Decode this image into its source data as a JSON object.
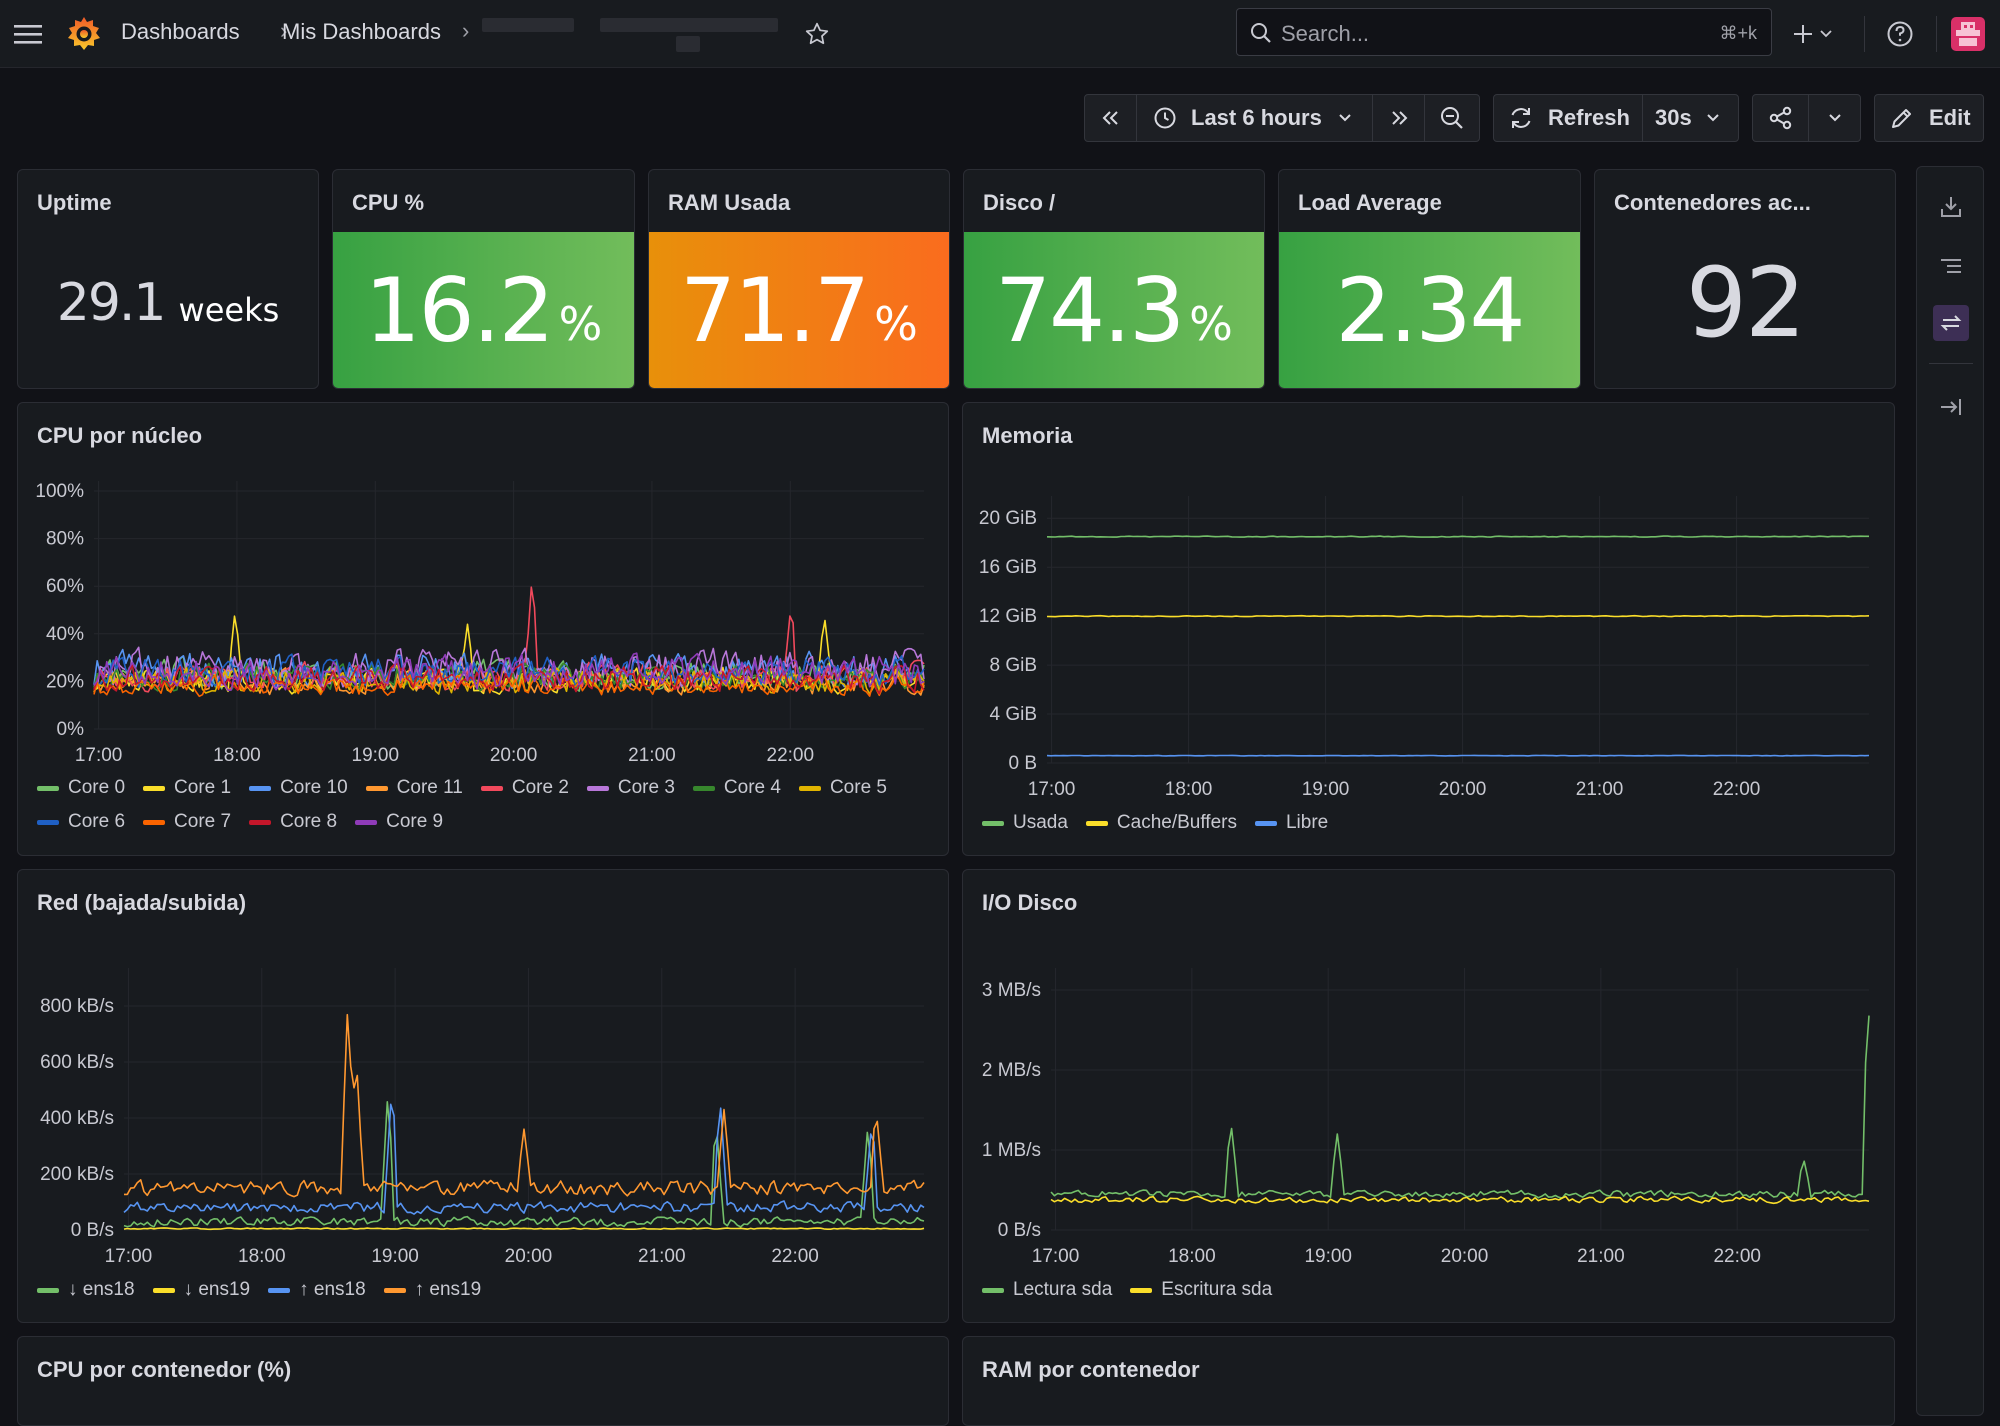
{
  "header": {
    "breadcrumb": [
      "Dashboards",
      "Mis Dashboards"
    ],
    "search_placeholder": "Search...",
    "search_shortcut": "⌘+k"
  },
  "toolbar": {
    "time_range": "Last 6 hours",
    "refresh_label": "Refresh",
    "refresh_interval": "30s",
    "edit_label": "Edit"
  },
  "stats": [
    {
      "title": "Uptime",
      "value": "29.1",
      "unit": "weeks",
      "style": "plain",
      "color": "#d8d9e0"
    },
    {
      "title": "CPU %",
      "value": "16.2",
      "unit": "%",
      "style": "green",
      "color": "#56a64b"
    },
    {
      "title": "RAM Usada",
      "value": "71.7",
      "unit": "%",
      "style": "orange",
      "color": "#ff780a"
    },
    {
      "title": "Disco /",
      "value": "74.3",
      "unit": "%",
      "style": "green",
      "color": "#56a64b"
    },
    {
      "title": "Load Average",
      "value": "2.34",
      "unit": "",
      "style": "green",
      "color": "#56a64b"
    },
    {
      "title": "Contenedores ac...",
      "value": "92",
      "unit": "",
      "style": "plain",
      "color": "#d8d9e0"
    }
  ],
  "panels": {
    "cpu": {
      "title": "CPU por núcleo"
    },
    "mem": {
      "title": "Memoria"
    },
    "net": {
      "title": "Red (bajada/subida)"
    },
    "disk": {
      "title": "I/O Disco"
    },
    "cpu_cont": {
      "title": "CPU por contenedor (%)"
    },
    "ram_cont": {
      "title": "RAM por contenedor"
    }
  },
  "chart_data": [
    {
      "id": "cpu",
      "type": "line",
      "title": "CPU por núcleo",
      "x": [
        "17:00",
        "18:00",
        "19:00",
        "20:00",
        "21:00",
        "22:00"
      ],
      "xlim": [
        "16:58",
        "22:58"
      ],
      "yticks": [
        "0%",
        "20%",
        "40%",
        "60%",
        "80%",
        "100%"
      ],
      "ylim": [
        0,
        100
      ],
      "series": [
        {
          "name": "Core 0",
          "color": "#73bf69",
          "baseline": 23,
          "noise": 9
        },
        {
          "name": "Core 1",
          "color": "#fade2a",
          "baseline": 21,
          "noise": 8,
          "spikes": [
            [
              0.17,
              50
            ],
            [
              0.45,
              44
            ],
            [
              0.88,
              48
            ]
          ]
        },
        {
          "name": "Core 10",
          "color": "#5794f2",
          "baseline": 25,
          "noise": 11
        },
        {
          "name": "Core 11",
          "color": "#ff9830",
          "baseline": 20,
          "noise": 8
        },
        {
          "name": "Core 2",
          "color": "#f2495c",
          "baseline": 22,
          "noise": 9,
          "spikes": [
            [
              0.528,
              65
            ],
            [
              0.84,
              53
            ]
          ]
        },
        {
          "name": "Core 3",
          "color": "#b877d9",
          "baseline": 26,
          "noise": 12
        },
        {
          "name": "Core 4",
          "color": "#37872d",
          "baseline": 22,
          "noise": 8
        },
        {
          "name": "Core 5",
          "color": "#e0b400",
          "baseline": 20,
          "noise": 8
        },
        {
          "name": "Core 6",
          "color": "#1f60c4",
          "baseline": 24,
          "noise": 9
        },
        {
          "name": "Core 7",
          "color": "#fa6400",
          "baseline": 18,
          "noise": 6
        },
        {
          "name": "Core 8",
          "color": "#c4162a",
          "baseline": 21,
          "noise": 8
        },
        {
          "name": "Core 9",
          "color": "#8f3bb8",
          "baseline": 24,
          "noise": 10
        }
      ]
    },
    {
      "id": "mem",
      "type": "line",
      "title": "Memoria",
      "x": [
        "17:00",
        "18:00",
        "19:00",
        "20:00",
        "21:00",
        "22:00"
      ],
      "xlim": [
        "16:58",
        "22:58"
      ],
      "yticks": [
        "0 B",
        "4 GiB",
        "8 GiB",
        "12 GiB",
        "16 GiB",
        "20 GiB"
      ],
      "ylim": [
        0,
        21
      ],
      "series": [
        {
          "name": "Usada",
          "color": "#73bf69",
          "baseline": 18.5,
          "noise": 0.1
        },
        {
          "name": "Cache/Buffers",
          "color": "#fade2a",
          "baseline": 12.0,
          "noise": 0.1
        },
        {
          "name": "Libre",
          "color": "#5794f2",
          "baseline": 0.6,
          "noise": 0.05
        }
      ]
    },
    {
      "id": "net",
      "type": "line",
      "title": "Red (bajada/subida)",
      "x": [
        "17:00",
        "18:00",
        "19:00",
        "20:00",
        "21:00",
        "22:00"
      ],
      "xlim": [
        "16:58",
        "22:58"
      ],
      "yticks": [
        "0 B/s",
        "200 kB/s",
        "400 kB/s",
        "600 kB/s",
        "800 kB/s"
      ],
      "ylim": [
        0,
        900
      ],
      "series": [
        {
          "name": "↓ ens18",
          "color": "#73bf69",
          "baseline": 30,
          "noise": 25,
          "spikes": [
            [
              0.33,
              500
            ],
            [
              0.74,
              400
            ],
            [
              0.93,
              380
            ]
          ]
        },
        {
          "name": "↓ ens19",
          "color": "#fade2a",
          "baseline": 5,
          "noise": 3
        },
        {
          "name": "↑ ens18",
          "color": "#5794f2",
          "baseline": 80,
          "noise": 30,
          "spikes": [
            [
              0.335,
              530
            ],
            [
              0.745,
              470
            ],
            [
              0.935,
              400
            ]
          ]
        },
        {
          "name": "↑ ens19",
          "color": "#ff9830",
          "baseline": 150,
          "noise": 40,
          "spikes": [
            [
              0.28,
              830
            ],
            [
              0.29,
              640
            ],
            [
              0.5,
              360
            ],
            [
              0.75,
              430
            ],
            [
              0.94,
              440
            ]
          ]
        }
      ]
    },
    {
      "id": "disk",
      "type": "line",
      "title": "I/O Disco",
      "x": [
        "17:00",
        "18:00",
        "19:00",
        "20:00",
        "21:00",
        "22:00"
      ],
      "xlim": [
        "16:58",
        "22:58"
      ],
      "yticks": [
        "0 B/s",
        "1 MB/s",
        "2 MB/s",
        "3 MB/s"
      ],
      "ylim": [
        0,
        3.15
      ],
      "series": [
        {
          "name": "Lectura sda",
          "color": "#73bf69",
          "baseline": 0.45,
          "noise": 0.12,
          "spikes": [
            [
              0.22,
              1.35
            ],
            [
              0.35,
              1.2
            ],
            [
              0.92,
              0.9
            ],
            [
              0.999,
              2.95
            ]
          ]
        },
        {
          "name": "Escritura sda",
          "color": "#fade2a",
          "baseline": 0.38,
          "noise": 0.1
        }
      ]
    }
  ]
}
